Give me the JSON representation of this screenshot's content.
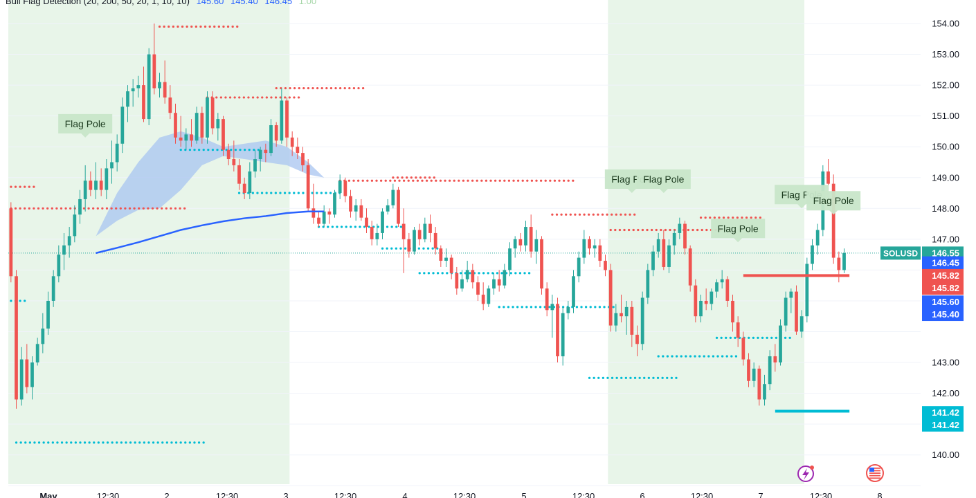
{
  "indicator": {
    "name": "Bull Flag Detection (20, 200, 50, 20, 1, 10, 10)",
    "values": [
      {
        "text": "145.60",
        "color": "#2962ff"
      },
      {
        "text": "145.40",
        "color": "#2962ff"
      },
      {
        "text": "146.45",
        "color": "#2962ff"
      },
      {
        "text": "1.00",
        "color": "#a5d6a7"
      }
    ]
  },
  "colors": {
    "up": "#26a69a",
    "down": "#ef5350",
    "red_dots": "#ef5350",
    "cyan_dots": "#00bcd4",
    "ma_line": "#2962ff",
    "cloud": "#a8c4f0",
    "flag_zone": "#e8f5e9",
    "flag_label_bg": "#c8e6c9",
    "flag_label_text": "#1b3a1e",
    "grid": "#f0f3fa",
    "axis_text": "#131722",
    "current_price_line": "#26a69a"
  },
  "price_axis": {
    "ticks": [
      "154.00",
      "153.00",
      "152.00",
      "151.00",
      "150.00",
      "149.00",
      "148.00",
      "147.00",
      "143.00",
      "142.00",
      "140.00"
    ]
  },
  "time_axis": {
    "labels": [
      "May",
      "12:30",
      "2",
      "12:30",
      "3",
      "12:30",
      "4",
      "12:30",
      "5",
      "12:30",
      "6",
      "12:30",
      "7",
      "12:30",
      "8"
    ]
  },
  "price_tags": [
    {
      "text": "146.55",
      "bg": "#26a69a",
      "price": 146.55,
      "symbol": "SOLUSD"
    },
    {
      "text": "146.45",
      "bg": "#2962ff",
      "price": 146.23
    },
    {
      "text": "145.82",
      "bg": "#ef5350",
      "price": 145.82
    },
    {
      "text": "145.82",
      "bg": "#ef5350",
      "price": 145.41
    },
    {
      "text": "145.60",
      "bg": "#2962ff",
      "price": 144.96
    },
    {
      "text": "145.40",
      "bg": "#2962ff",
      "price": 144.56
    },
    {
      "text": "141.42",
      "bg": "#00bcd4",
      "price": 141.37
    },
    {
      "text": "141.42",
      "bg": "#00bcd4",
      "price": 140.97
    }
  ],
  "flag_labels": [
    "Flag Pole",
    "Flag Pole",
    "Flag Pole",
    "Flag Pole",
    "Flag Pole",
    "Flag Pole"
  ],
  "chart_data": {
    "type": "candlestick",
    "symbol": "SOLUSD",
    "last_price": 146.55,
    "ylim": [
      139.0,
      154.8
    ],
    "x_range": [
      0,
      150
    ],
    "candles": [
      [
        148.0,
        148.2,
        145.6,
        145.8
      ],
      [
        145.8,
        146.0,
        141.5,
        141.8
      ],
      [
        141.8,
        143.5,
        141.6,
        143.1
      ],
      [
        143.1,
        143.6,
        142.0,
        142.2
      ],
      [
        142.2,
        143.2,
        141.8,
        143.0
      ],
      [
        143.0,
        143.8,
        142.9,
        143.6
      ],
      [
        143.6,
        144.6,
        143.3,
        144.1
      ],
      [
        144.1,
        145.3,
        143.9,
        145.0
      ],
      [
        145.0,
        146.0,
        144.8,
        145.8
      ],
      [
        145.8,
        146.8,
        145.6,
        146.5
      ],
      [
        146.5,
        147.2,
        146.0,
        146.8
      ],
      [
        146.8,
        147.4,
        146.4,
        147.1
      ],
      [
        147.1,
        148.1,
        146.9,
        147.8
      ],
      [
        147.8,
        148.6,
        147.5,
        148.3
      ],
      [
        148.3,
        149.4,
        147.9,
        148.9
      ],
      [
        148.9,
        149.2,
        148.4,
        148.6
      ],
      [
        148.6,
        149.5,
        148.3,
        148.9
      ],
      [
        148.9,
        149.3,
        148.4,
        148.6
      ],
      [
        148.6,
        149.6,
        148.3,
        149.3
      ],
      [
        149.3,
        150.2,
        148.8,
        149.5
      ],
      [
        149.5,
        150.4,
        149.2,
        150.1
      ],
      [
        150.1,
        151.6,
        149.8,
        151.3
      ],
      [
        151.3,
        152.0,
        150.8,
        151.8
      ],
      [
        151.8,
        152.2,
        151.3,
        151.9
      ],
      [
        151.9,
        152.3,
        151.6,
        152.0
      ],
      [
        152.0,
        152.6,
        150.8,
        150.9
      ],
      [
        150.9,
        153.2,
        150.7,
        153.0
      ],
      [
        153.0,
        154.0,
        151.7,
        151.9
      ],
      [
        151.9,
        152.4,
        151.6,
        152.1
      ],
      [
        152.1,
        152.8,
        151.4,
        151.6
      ],
      [
        151.6,
        152.0,
        150.9,
        151.1
      ],
      [
        151.1,
        151.4,
        150.1,
        150.3
      ],
      [
        150.3,
        151.0,
        150.0,
        150.2
      ],
      [
        150.2,
        150.6,
        149.9,
        150.4
      ],
      [
        150.4,
        150.9,
        150.0,
        150.2
      ],
      [
        150.2,
        151.3,
        150.1,
        151.1
      ],
      [
        151.1,
        151.3,
        150.1,
        150.3
      ],
      [
        150.3,
        151.8,
        150.1,
        151.6
      ],
      [
        151.6,
        151.8,
        150.4,
        150.6
      ],
      [
        150.6,
        151.1,
        150.2,
        150.9
      ],
      [
        150.9,
        151.0,
        149.7,
        149.9
      ],
      [
        149.9,
        150.1,
        149.4,
        149.6
      ],
      [
        149.6,
        150.2,
        149.2,
        149.4
      ],
      [
        149.4,
        149.6,
        148.6,
        148.8
      ],
      [
        148.8,
        149.0,
        148.3,
        148.5
      ],
      [
        148.5,
        149.5,
        148.3,
        149.2
      ],
      [
        149.2,
        149.9,
        149.0,
        149.6
      ],
      [
        149.6,
        150.0,
        149.2,
        149.9
      ],
      [
        149.9,
        150.1,
        149.5,
        149.8
      ],
      [
        149.8,
        150.9,
        149.7,
        150.7
      ],
      [
        150.7,
        150.8,
        150.0,
        150.2
      ],
      [
        150.2,
        151.9,
        150.1,
        151.5
      ],
      [
        151.5,
        151.6,
        150.0,
        150.3
      ],
      [
        150.3,
        150.5,
        149.7,
        150.0
      ],
      [
        150.0,
        150.3,
        149.6,
        149.8
      ],
      [
        149.8,
        150.0,
        149.2,
        149.4
      ],
      [
        149.4,
        149.6,
        147.9,
        148.0
      ],
      [
        148.0,
        148.8,
        147.5,
        147.7
      ],
      [
        147.7,
        147.9,
        147.4,
        147.5
      ],
      [
        147.5,
        148.1,
        147.4,
        147.9
      ],
      [
        147.9,
        148.0,
        147.5,
        147.8
      ],
      [
        147.8,
        148.6,
        147.7,
        148.5
      ],
      [
        148.5,
        149.1,
        148.3,
        148.9
      ],
      [
        148.9,
        149.0,
        148.2,
        148.4
      ],
      [
        148.4,
        148.6,
        147.7,
        147.9
      ],
      [
        147.9,
        148.3,
        147.6,
        148.1
      ],
      [
        148.1,
        148.3,
        147.6,
        147.7
      ],
      [
        147.7,
        148.0,
        147.2,
        147.4
      ],
      [
        147.4,
        147.6,
        146.8,
        147.0
      ],
      [
        147.0,
        147.5,
        146.8,
        147.2
      ],
      [
        147.2,
        148.0,
        147.0,
        147.9
      ],
      [
        147.9,
        148.3,
        147.8,
        148.1
      ],
      [
        148.1,
        148.8,
        148.0,
        148.6
      ],
      [
        148.6,
        148.7,
        147.4,
        147.5
      ],
      [
        147.5,
        148.0,
        145.9,
        147.0
      ],
      [
        147.0,
        147.2,
        146.4,
        146.6
      ],
      [
        146.6,
        147.4,
        146.5,
        147.3
      ],
      [
        147.3,
        147.5,
        146.8,
        147.0
      ],
      [
        147.0,
        147.7,
        146.9,
        147.5
      ],
      [
        147.5,
        147.8,
        146.9,
        147.2
      ],
      [
        147.2,
        147.4,
        146.5,
        146.7
      ],
      [
        146.7,
        146.8,
        146.1,
        146.3
      ],
      [
        146.3,
        146.7,
        146.1,
        146.4
      ],
      [
        146.4,
        146.5,
        145.7,
        145.9
      ],
      [
        145.9,
        146.1,
        145.2,
        145.4
      ],
      [
        145.4,
        146.0,
        145.3,
        145.7
      ],
      [
        145.7,
        146.3,
        145.6,
        146.0
      ],
      [
        146.0,
        146.2,
        145.4,
        145.6
      ],
      [
        145.6,
        145.8,
        145.0,
        145.2
      ],
      [
        145.2,
        145.6,
        144.7,
        144.9
      ],
      [
        144.9,
        145.5,
        144.8,
        145.4
      ],
      [
        145.4,
        145.9,
        145.2,
        145.7
      ],
      [
        145.7,
        146.0,
        145.3,
        145.5
      ],
      [
        145.5,
        146.2,
        145.4,
        146.0
      ],
      [
        146.0,
        146.9,
        145.8,
        146.7
      ],
      [
        146.7,
        147.1,
        146.4,
        147.0
      ],
      [
        147.0,
        147.2,
        146.6,
        146.8
      ],
      [
        146.8,
        147.6,
        146.6,
        147.4
      ],
      [
        147.4,
        147.8,
        146.4,
        146.6
      ],
      [
        146.6,
        147.3,
        146.2,
        147.0
      ],
      [
        147.0,
        147.1,
        145.2,
        145.4
      ],
      [
        145.4,
        145.6,
        144.5,
        144.7
      ],
      [
        144.7,
        145.2,
        143.8,
        144.9
      ],
      [
        144.9,
        145.1,
        143.0,
        143.2
      ],
      [
        143.2,
        144.8,
        142.9,
        144.6
      ],
      [
        144.6,
        145.0,
        144.4,
        144.8
      ],
      [
        144.8,
        146.0,
        144.6,
        145.8
      ],
      [
        145.8,
        146.6,
        145.6,
        146.4
      ],
      [
        146.4,
        147.3,
        146.2,
        147.0
      ],
      [
        147.0,
        147.1,
        146.5,
        146.7
      ],
      [
        146.7,
        147.0,
        146.4,
        146.8
      ],
      [
        146.8,
        147.0,
        146.1,
        146.3
      ],
      [
        146.3,
        146.5,
        145.8,
        146.0
      ],
      [
        146.0,
        146.2,
        144.0,
        144.2
      ],
      [
        144.2,
        144.9,
        144.0,
        144.6
      ],
      [
        144.6,
        145.2,
        144.3,
        144.5
      ],
      [
        144.5,
        145.0,
        143.9,
        144.8
      ],
      [
        144.8,
        145.0,
        143.5,
        143.9
      ],
      [
        143.9,
        144.2,
        143.2,
        143.6
      ],
      [
        143.6,
        145.3,
        143.4,
        145.1
      ],
      [
        145.1,
        146.2,
        144.9,
        146.0
      ],
      [
        146.0,
        146.8,
        145.8,
        146.6
      ],
      [
        146.6,
        147.2,
        146.4,
        147.0
      ],
      [
        147.0,
        147.3,
        146.0,
        146.1
      ],
      [
        146.1,
        147.0,
        145.9,
        146.8
      ],
      [
        146.8,
        147.3,
        146.5,
        147.2
      ],
      [
        147.2,
        147.7,
        147.0,
        147.5
      ],
      [
        147.5,
        147.6,
        146.5,
        146.7
      ],
      [
        146.7,
        146.8,
        145.3,
        145.5
      ],
      [
        145.5,
        145.7,
        144.3,
        144.5
      ],
      [
        144.5,
        145.2,
        144.3,
        145.0
      ],
      [
        145.0,
        145.4,
        144.7,
        144.9
      ],
      [
        144.9,
        145.4,
        144.7,
        145.3
      ],
      [
        145.3,
        145.7,
        145.1,
        145.6
      ],
      [
        145.6,
        146.0,
        145.4,
        145.7
      ],
      [
        145.7,
        145.8,
        144.8,
        145.0
      ],
      [
        145.0,
        145.2,
        144.0,
        144.3
      ],
      [
        144.3,
        144.5,
        143.5,
        143.8
      ],
      [
        143.8,
        144.0,
        142.9,
        143.1
      ],
      [
        143.1,
        143.3,
        142.2,
        142.4
      ],
      [
        142.4,
        143.0,
        142.2,
        142.8
      ],
      [
        142.8,
        142.9,
        141.6,
        141.8
      ],
      [
        141.8,
        142.6,
        141.6,
        142.3
      ],
      [
        142.3,
        143.4,
        142.1,
        143.2
      ],
      [
        143.2,
        143.6,
        142.7,
        143.0
      ],
      [
        143.0,
        144.4,
        142.9,
        144.2
      ],
      [
        144.2,
        145.3,
        144.0,
        145.1
      ],
      [
        145.1,
        145.4,
        144.6,
        145.3
      ],
      [
        145.3,
        145.5,
        143.9,
        144.0
      ],
      [
        144.0,
        144.7,
        143.8,
        144.5
      ],
      [
        144.5,
        146.4,
        144.3,
        146.2
      ],
      [
        146.2,
        147.0,
        146.0,
        146.8
      ],
      [
        146.8,
        147.5,
        146.5,
        147.3
      ],
      [
        147.3,
        149.4,
        147.1,
        149.2
      ],
      [
        149.2,
        149.6,
        148.6,
        148.8
      ],
      [
        148.8,
        149.1,
        146.2,
        146.4
      ],
      [
        146.4,
        146.6,
        145.6,
        146.0
      ],
      [
        146.0,
        146.7,
        145.9,
        146.55
      ]
    ],
    "flag_zones": [
      [
        0,
        53
      ],
      [
        113,
        150
      ]
    ],
    "flag_pole_labels": [
      {
        "x": 14,
        "price": 150.3
      },
      {
        "x": 117,
        "price": 148.5
      },
      {
        "x": 123,
        "price": 148.5
      },
      {
        "x": 137,
        "price": 146.9
      },
      {
        "x": 149,
        "price": 148.0
      },
      {
        "x": 155,
        "price": 147.8
      }
    ],
    "red_dotted_levels": [
      {
        "x0": 0,
        "x1": 5,
        "price": 148.7
      },
      {
        "x0": 0,
        "x1": 33,
        "price": 148.0
      },
      {
        "x0": 28,
        "x1": 43,
        "price": 153.9
      },
      {
        "x0": 37,
        "x1": 55,
        "price": 151.6
      },
      {
        "x0": 50,
        "x1": 67,
        "price": 151.9
      },
      {
        "x0": 62,
        "x1": 106,
        "price": 148.9
      },
      {
        "x0": 72,
        "x1": 80,
        "price": 149.0
      },
      {
        "x0": 102,
        "x1": 118,
        "price": 147.8
      },
      {
        "x0": 113,
        "x1": 134,
        "price": 147.3
      },
      {
        "x0": 130,
        "x1": 142,
        "price": 147.7
      }
    ],
    "cyan_dotted_levels": [
      {
        "x0": 0,
        "x1": 3,
        "price": 145.0
      },
      {
        "x0": 1,
        "x1": 37,
        "price": 140.4
      },
      {
        "x0": 32,
        "x1": 47,
        "price": 149.9
      },
      {
        "x0": 43,
        "x1": 62,
        "price": 148.5
      },
      {
        "x0": 58,
        "x1": 74,
        "price": 147.4
      },
      {
        "x0": 70,
        "x1": 81,
        "price": 146.7
      },
      {
        "x0": 77,
        "x1": 98,
        "price": 145.9
      },
      {
        "x0": 92,
        "x1": 114,
        "price": 144.8
      },
      {
        "x0": 109,
        "x1": 126,
        "price": 142.5
      },
      {
        "x0": 122,
        "x1": 137,
        "price": 143.2
      },
      {
        "x0": 133,
        "x1": 147,
        "price": 143.8
      }
    ],
    "red_solid_levels": [
      {
        "x0": 138,
        "x1": 158,
        "price": 145.82
      }
    ],
    "cyan_solid_levels": [
      {
        "x0": 144,
        "x1": 158,
        "price": 141.42
      }
    ],
    "ma_line": [
      [
        16,
        146.55
      ],
      [
        20,
        146.72
      ],
      [
        24,
        146.9
      ],
      [
        28,
        147.1
      ],
      [
        32,
        147.3
      ],
      [
        36,
        147.45
      ],
      [
        40,
        147.58
      ],
      [
        44,
        147.68
      ],
      [
        48,
        147.75
      ],
      [
        52,
        147.85
      ],
      [
        56,
        147.9
      ],
      [
        59,
        147.9
      ]
    ],
    "cloud": {
      "upper": [
        [
          16,
          147.1
        ],
        [
          20,
          148.5
        ],
        [
          24,
          149.5
        ],
        [
          28,
          150.3
        ],
        [
          32,
          150.5
        ],
        [
          36,
          150.3
        ],
        [
          40,
          150.0
        ],
        [
          44,
          150.1
        ],
        [
          48,
          150.2
        ],
        [
          52,
          150.0
        ],
        [
          56,
          149.5
        ],
        [
          59,
          149.0
        ]
      ],
      "lower": [
        [
          16,
          147.1
        ],
        [
          20,
          147.6
        ],
        [
          24,
          147.95
        ],
        [
          28,
          148.0
        ],
        [
          32,
          148.6
        ],
        [
          36,
          149.4
        ],
        [
          40,
          149.7
        ],
        [
          44,
          149.6
        ],
        [
          48,
          149.5
        ],
        [
          52,
          149.4
        ],
        [
          56,
          149.1
        ],
        [
          59,
          149.0
        ]
      ]
    }
  }
}
